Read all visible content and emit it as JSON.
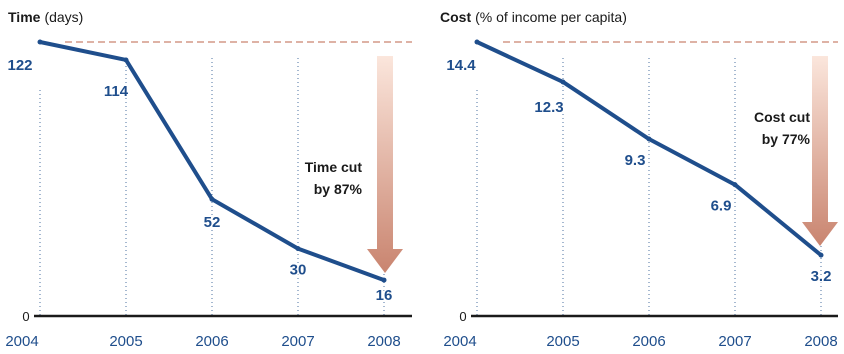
{
  "chart_data": [
    {
      "type": "line",
      "title": "Time",
      "subtitle": "(days)",
      "categories": [
        "2004",
        "2005",
        "2006",
        "2007",
        "2008"
      ],
      "values": [
        122,
        114,
        52,
        30,
        16
      ],
      "value_labels": [
        "122",
        "114",
        "52",
        "30",
        "16"
      ],
      "ylim": [
        0,
        122
      ],
      "zero_label": "0",
      "reference": {
        "value": 122,
        "style": "dashed"
      },
      "annotation": {
        "line1": "Time cut",
        "line2": "by 87%"
      },
      "grid": "dotted vertical",
      "colors": {
        "line": "#1f4e8c",
        "reference": "#c9846f",
        "arrow_top": "#fbe6dc",
        "arrow_bottom": "#c9846f"
      }
    },
    {
      "type": "line",
      "title": "Cost",
      "subtitle": "(% of income per capita)",
      "categories": [
        "2004",
        "2005",
        "2006",
        "2007",
        "2008"
      ],
      "values": [
        14.4,
        12.3,
        9.3,
        6.9,
        3.2
      ],
      "value_labels": [
        "14.4",
        "12.3",
        "9.3",
        "6.9",
        "3.2"
      ],
      "ylim": [
        0,
        14.4
      ],
      "zero_label": "0",
      "reference": {
        "value": 14.4,
        "style": "dashed"
      },
      "annotation": {
        "line1": "Cost cut",
        "line2": "by 77%"
      },
      "grid": "dotted vertical",
      "colors": {
        "line": "#1f4e8c",
        "reference": "#c9846f",
        "arrow_top": "#fbe6dc",
        "arrow_bottom": "#c9846f"
      }
    }
  ]
}
